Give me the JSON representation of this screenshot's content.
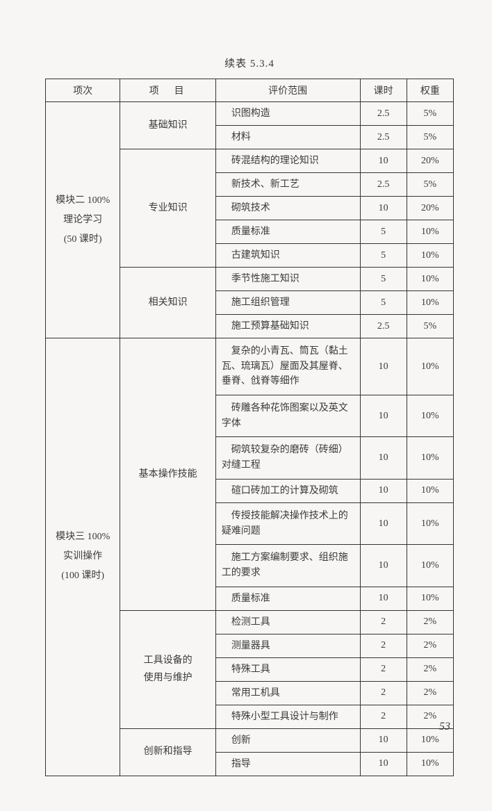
{
  "caption": "续表 5.3.4",
  "headers": {
    "col1": "项次",
    "col2": "项　目",
    "col3": "评价范围",
    "col4": "课时",
    "col5": "权重"
  },
  "module2": {
    "title": "模块二 100%\n理论学习\n(50 课时)",
    "sections": [
      {
        "name": "基础知识",
        "rows": [
          {
            "scope": "识图构造",
            "hours": "2.5",
            "weight": "5%"
          },
          {
            "scope": "材料",
            "hours": "2.5",
            "weight": "5%"
          }
        ]
      },
      {
        "name": "专业知识",
        "rows": [
          {
            "scope": "砖混结构的理论知识",
            "hours": "10",
            "weight": "20%"
          },
          {
            "scope": "新技术、新工艺",
            "hours": "2.5",
            "weight": "5%"
          },
          {
            "scope": "砌筑技术",
            "hours": "10",
            "weight": "20%"
          },
          {
            "scope": "质量标准",
            "hours": "5",
            "weight": "10%"
          },
          {
            "scope": "古建筑知识",
            "hours": "5",
            "weight": "10%"
          }
        ]
      },
      {
        "name": "相关知识",
        "rows": [
          {
            "scope": "季节性施工知识",
            "hours": "5",
            "weight": "10%"
          },
          {
            "scope": "施工组织管理",
            "hours": "5",
            "weight": "10%"
          },
          {
            "scope": "施工预算基础知识",
            "hours": "2.5",
            "weight": "5%"
          }
        ]
      }
    ]
  },
  "module3": {
    "title": "模块三 100%\n实训操作\n(100 课时)",
    "sections": [
      {
        "name": "基本操作技能",
        "rows": [
          {
            "scope": "　复杂的小青瓦、筒瓦（黏土瓦、琉璃瓦）屋面及其屋脊、垂脊、戗脊等细作",
            "hours": "10",
            "weight": "10%",
            "multi": true
          },
          {
            "scope": "　砖雕各种花饰图案以及英文字体",
            "hours": "10",
            "weight": "10%",
            "multi": true
          },
          {
            "scope": "　砌筑较复杂的磨砖（砖细）对缝工程",
            "hours": "10",
            "weight": "10%",
            "multi": true
          },
          {
            "scope": "碹口砖加工的计算及砌筑",
            "hours": "10",
            "weight": "10%"
          },
          {
            "scope": "　传授技能解决操作技术上的疑难问题",
            "hours": "10",
            "weight": "10%",
            "multi": true
          },
          {
            "scope": "　施工方案编制要求、组织施工的要求",
            "hours": "10",
            "weight": "10%",
            "multi": true
          },
          {
            "scope": "质量标准",
            "hours": "10",
            "weight": "10%"
          }
        ]
      },
      {
        "name": "工具设备的\n使用与维护",
        "rows": [
          {
            "scope": "检测工具",
            "hours": "2",
            "weight": "2%"
          },
          {
            "scope": "测量器具",
            "hours": "2",
            "weight": "2%"
          },
          {
            "scope": "特殊工具",
            "hours": "2",
            "weight": "2%"
          },
          {
            "scope": "常用工机具",
            "hours": "2",
            "weight": "2%"
          },
          {
            "scope": "特殊小型工具设计与制作",
            "hours": "2",
            "weight": "2%"
          }
        ]
      },
      {
        "name": "创新和指导",
        "rows": [
          {
            "scope": "创新",
            "hours": "10",
            "weight": "10%"
          },
          {
            "scope": "指导",
            "hours": "10",
            "weight": "10%"
          }
        ]
      }
    ]
  },
  "pageNumber": "53"
}
